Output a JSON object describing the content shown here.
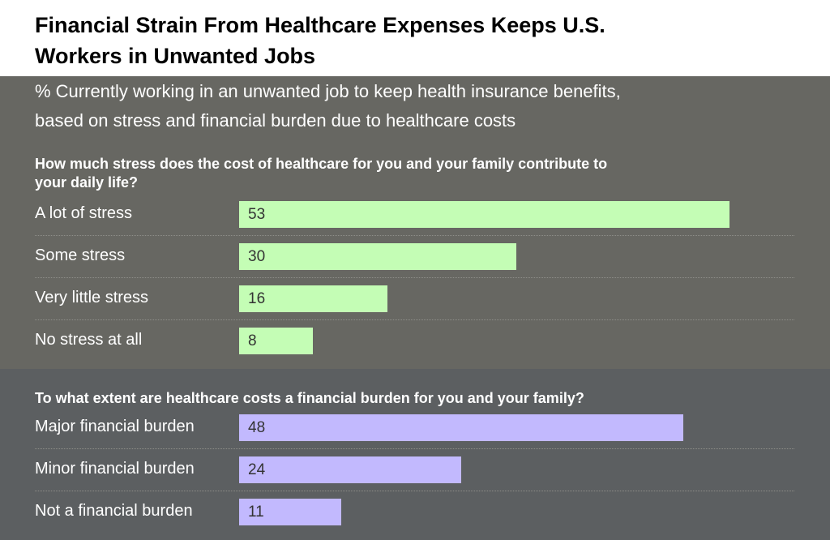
{
  "chart_data": {
    "type": "bar",
    "orientation": "horizontal",
    "title": "Financial Strain From Healthcare Expenses Keeps U.S. Workers in Unwanted Jobs",
    "title_lines": [
      "Financial Strain From Healthcare Expenses Keeps U.S.",
      "Workers in Unwanted Jobs"
    ],
    "subtitle": "% Currently working in an unwanted job to keep health insurance benefits, based on stress and financial burden due to healthcare costs",
    "subtitle_lines": [
      "% Currently working in an unwanted job to keep health insurance benefits,",
      "based on stress and financial burden due to healthcare costs"
    ],
    "xlim": [
      0,
      100
    ],
    "grid": false,
    "groups": [
      {
        "question": "How much stress does the cost of healthcare for you and your family contribute to your daily life?",
        "question_lines": [
          "How much stress does the cost of healthcare for you and your family contribute to",
          "your daily life?"
        ],
        "color": "#c4fdb5",
        "panel_color": "#676762",
        "categories": [
          "A lot of stress",
          "Some stress",
          "Very little stress",
          "No stress at all"
        ],
        "values": [
          53,
          30,
          16,
          8
        ]
      },
      {
        "question": "To what extent are healthcare costs a financial burden for you and your family?",
        "question_lines": [
          "To what extent are healthcare costs a financial burden for you and your family?"
        ],
        "color": "#c2b9fe",
        "panel_color": "#5c5f61",
        "categories": [
          "Major financial burden",
          "Minor financial burden",
          "Not a financial burden"
        ],
        "values": [
          48,
          24,
          11
        ]
      }
    ]
  }
}
